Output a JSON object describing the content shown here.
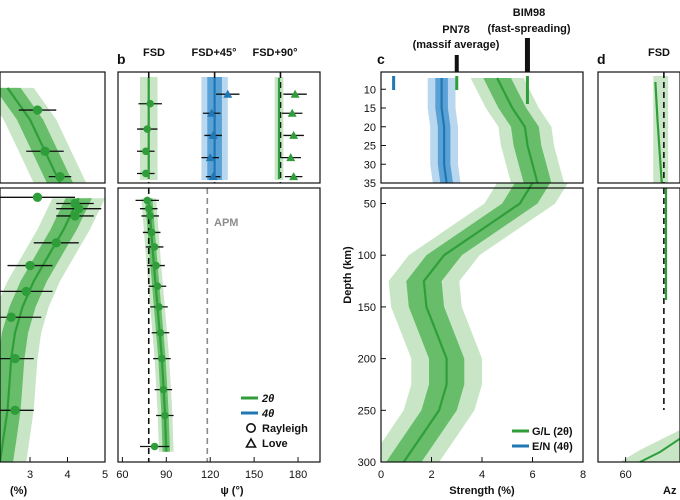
{
  "panels": {
    "a": {
      "xlabel": "(%)"
    },
    "b": {
      "letter": "b",
      "xlabel": "ψ (°)",
      "ref_labels": [
        "FSD",
        "FSD+45°",
        "FSD+90°"
      ],
      "apm_label": "APM",
      "legend": [
        "2θ",
        "4θ",
        "Rayleigh",
        "Love"
      ]
    },
    "c": {
      "letter": "c",
      "xlabel": "Strength (%)",
      "ylabel": "Depth (km)",
      "ref_labels": [
        "PN78\n(massif average)",
        "BIM98\n(fast-spreading)"
      ],
      "legend": [
        "G/L (2θ)",
        "E/N (4θ)"
      ]
    },
    "d": {
      "letter": "d",
      "ref_label": "FSD",
      "xlabel_fragment": "Az"
    }
  },
  "colors": {
    "green": "#2f9e3a",
    "green_band_inner": "#67bd69",
    "green_band_outer": "#c8e6c6",
    "blue": "#1f77b4",
    "blue_band_inner": "#5aa1d6",
    "blue_band_outer": "#b9d8ef",
    "apm": "#8c8c8c"
  },
  "chart_data": [
    {
      "id": "a",
      "type": "line",
      "xlabel": "(%)",
      "x_ticks": [
        3,
        4,
        5
      ],
      "xlim": [
        2.2,
        5
      ],
      "ylim": [
        300,
        0
      ],
      "series": [
        {
          "name": "2θ",
          "depth": [
            5,
            15,
            25,
            35
          ],
          "strength": [
            2.4,
            3.0,
            3.4,
            3.8
          ]
        },
        {
          "name": "2θ",
          "depth": [
            45,
            60,
            75,
            100,
            125,
            150,
            175,
            200,
            225,
            250,
            275,
            300
          ],
          "strength": [
            4.3,
            4.1,
            3.9,
            3.5,
            3.1,
            2.8,
            2.6,
            2.5,
            2.45,
            2.4,
            2.3,
            2.2
          ]
        }
      ],
      "points": [
        {
          "depth": 12,
          "value": 3.2,
          "err": 0.5
        },
        {
          "depth": 25,
          "value": 3.4,
          "err": 0.5
        },
        {
          "depth": 33,
          "value": 3.8,
          "err": 0.3
        },
        {
          "depth": 44,
          "value": 3.2,
          "err": 1.0
        },
        {
          "depth": 50,
          "value": 4.2,
          "err": 0.5
        },
        {
          "depth": 55,
          "value": 4.3,
          "err": 0.6
        },
        {
          "depth": 62,
          "value": 4.2,
          "err": 0.5
        },
        {
          "depth": 88,
          "value": 3.7,
          "err": 0.6
        },
        {
          "depth": 110,
          "value": 3.0,
          "err": 0.6
        },
        {
          "depth": 135,
          "value": 2.9,
          "err": 0.7
        },
        {
          "depth": 160,
          "value": 2.5,
          "err": 0.8
        },
        {
          "depth": 200,
          "value": 2.6,
          "err": 0.5
        },
        {
          "depth": 250,
          "value": 2.6,
          "err": 0.5
        }
      ]
    },
    {
      "id": "b",
      "type": "line",
      "xlabel": "ψ (°)",
      "x_ticks": [
        60,
        90,
        120,
        150,
        180
      ],
      "xlim": [
        57,
        195
      ],
      "ylim": [
        300,
        0
      ],
      "reference_lines": [
        {
          "label": "FSD",
          "x": 78
        },
        {
          "label": "FSD+45°",
          "x": 123
        },
        {
          "label": "FSD+90°",
          "x": 168
        }
      ],
      "apm": {
        "label": "APM",
        "x": 118
      },
      "series": [
        {
          "name": "2θ",
          "depth": [
            0,
            35
          ],
          "psi": [
            78,
            78
          ]
        },
        {
          "name": "4θ",
          "depth": [
            0,
            35
          ],
          "psi": [
            123,
            123
          ]
        },
        {
          "name": "2θ",
          "depth": [
            45,
            100,
            150,
            200,
            250,
            290
          ],
          "psi": [
            78,
            81,
            84,
            87,
            89,
            90
          ]
        }
      ],
      "rayleigh_points": [
        {
          "depth": 10,
          "psi": 79,
          "err": 8
        },
        {
          "depth": 18,
          "psi": 77,
          "err": 7
        },
        {
          "depth": 25,
          "psi": 76,
          "err": 6
        },
        {
          "depth": 32,
          "psi": 76,
          "err": 6
        },
        {
          "depth": 47,
          "psi": 77,
          "err": 8
        },
        {
          "depth": 55,
          "psi": 78,
          "err": 6
        },
        {
          "depth": 62,
          "psi": 79,
          "err": 6
        },
        {
          "depth": 78,
          "psi": 80,
          "err": 6
        },
        {
          "depth": 92,
          "psi": 82,
          "err": 6
        },
        {
          "depth": 110,
          "psi": 83,
          "err": 6
        },
        {
          "depth": 130,
          "psi": 84,
          "err": 6
        },
        {
          "depth": 150,
          "psi": 85,
          "err": 6
        },
        {
          "depth": 175,
          "psi": 86,
          "err": 6
        },
        {
          "depth": 200,
          "psi": 87,
          "err": 6
        },
        {
          "depth": 230,
          "psi": 88,
          "err": 6
        },
        {
          "depth": 255,
          "psi": 89,
          "err": 6
        },
        {
          "depth": 285,
          "psi": 82,
          "err": 10
        }
      ],
      "love_points": [
        {
          "depth": 7,
          "psi": 132,
          "err": 8
        },
        {
          "depth": 13,
          "psi": 121,
          "err": 6
        },
        {
          "depth": 20,
          "psi": 122,
          "err": 6
        },
        {
          "depth": 27,
          "psi": 120,
          "err": 6
        },
        {
          "depth": 33,
          "psi": 122,
          "err": 5
        },
        {
          "depth": 7,
          "psi": 178,
          "err": 8
        },
        {
          "depth": 13,
          "psi": 176,
          "err": 7
        },
        {
          "depth": 20,
          "psi": 177,
          "err": 7
        },
        {
          "depth": 27,
          "psi": 175,
          "err": 7
        },
        {
          "depth": 33,
          "psi": 177,
          "err": 6
        }
      ],
      "legend_placement": "bottom-right"
    },
    {
      "id": "c",
      "type": "line",
      "xlabel": "Strength (%)",
      "ylabel": "Depth (km)",
      "x_ticks": [
        0,
        2,
        4,
        6,
        8
      ],
      "xlim": [
        0,
        8
      ],
      "y_ticks_crust": [
        10,
        15,
        20,
        25,
        30,
        35
      ],
      "y_ticks_mantle": [
        50,
        100,
        150,
        200,
        250,
        300
      ],
      "ylim": [
        300,
        0
      ],
      "reference_marks": [
        {
          "label": "PN78\n(massif average)",
          "x": 3.0,
          "blue_x": 0.5
        },
        {
          "label": "BIM98\n(fast-spreading)",
          "x": 5.8
        }
      ],
      "series": [
        {
          "name": "G/L (2θ)",
          "depth": [
            7,
            15,
            20,
            25,
            30,
            35
          ],
          "strength": [
            4.6,
            5.2,
            5.7,
            5.8,
            6.0,
            6.2
          ]
        },
        {
          "name": "G/L (2θ)",
          "depth": [
            35,
            50,
            75,
            100,
            125,
            150,
            175,
            200,
            225,
            250,
            275,
            300
          ],
          "strength": [
            6.0,
            5.5,
            4.0,
            2.5,
            1.7,
            1.8,
            2.2,
            2.6,
            2.6,
            2.3,
            1.6,
            0.9
          ]
        },
        {
          "name": "E/N (4θ)",
          "depth": [
            7,
            15,
            20,
            25,
            30,
            35
          ],
          "strength": [
            2.4,
            2.4,
            2.5,
            2.5,
            2.5,
            2.6
          ]
        }
      ],
      "legend_placement": "bottom-right"
    },
    {
      "id": "d",
      "type": "line",
      "x_ticks": [
        60
      ],
      "ylim": [
        300,
        0
      ],
      "reference_lines": [
        {
          "label": "FSD",
          "x": 78
        }
      ]
    }
  ]
}
